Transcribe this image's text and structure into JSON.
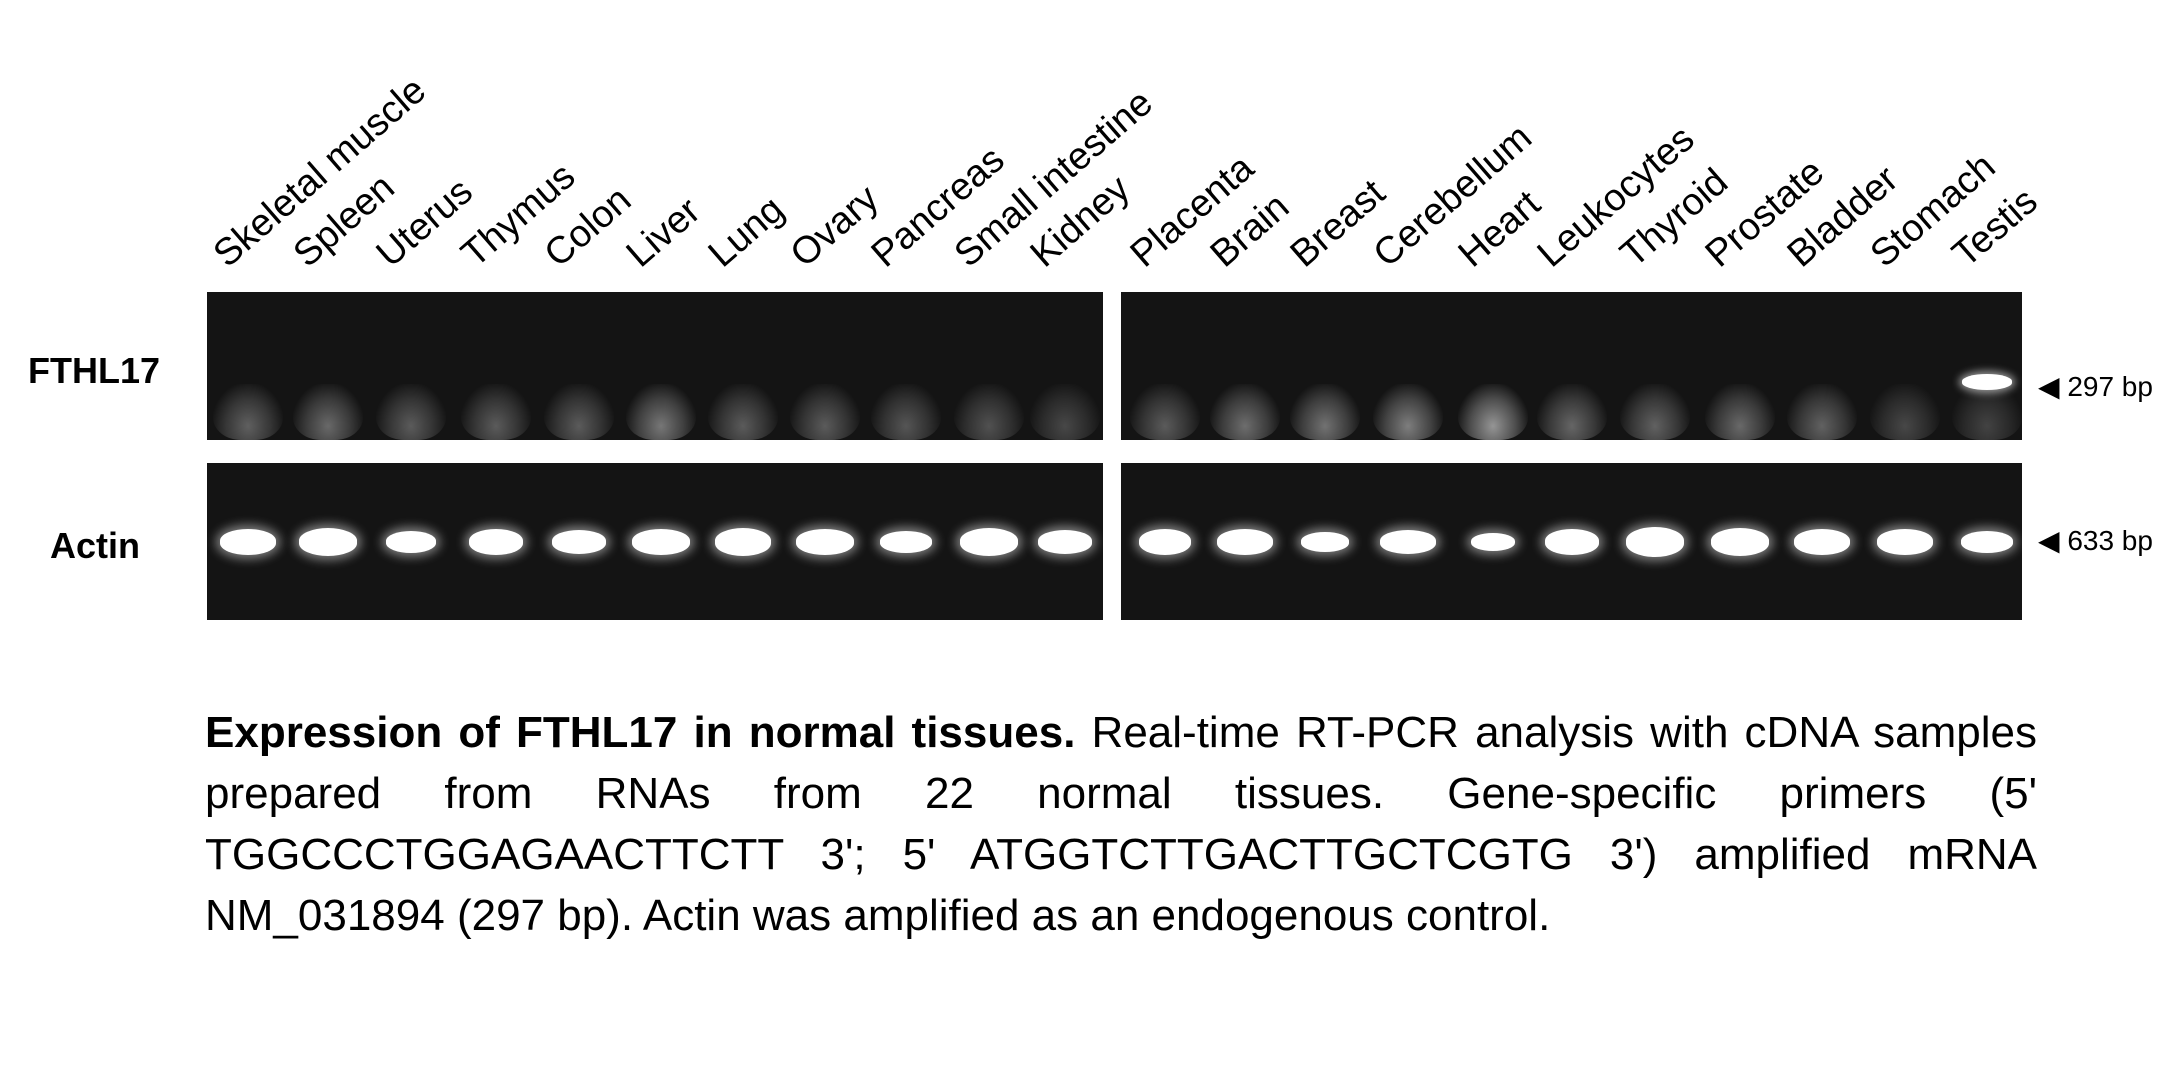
{
  "figure": {
    "tissues": [
      "Skeletal muscle",
      "Spleen",
      "Uterus",
      "Thymus",
      "Colon",
      "Liver",
      "Lung",
      "Ovary",
      "Pancreas",
      "Small intestine",
      "Kidney",
      "Placenta",
      "Brain",
      "Breast",
      "Cerebellum",
      "Heart",
      "Leukocytes",
      "Thyroid",
      "Prostate",
      "Bladder",
      "Stomach",
      "Testis"
    ],
    "rows": [
      {
        "label": "FTHL17",
        "marker": "◀ 297 bp"
      },
      {
        "label": "Actin",
        "marker": "◀ 633 bp"
      }
    ],
    "colors": {
      "gel_background": "#141414",
      "band": "#ffffff"
    }
  },
  "caption": {
    "title": "Expression of FTHL17 in normal tissues.",
    "body": " Real-time RT-PCR analysis with cDNA samples prepared from RNAs from 22 normal tissues. Gene-specific primers (5' TGGCCCTGGAGAACTTCTT 3'; 5' ATGGTCTTGACTTGCTCGTG 3') amplified mRNA NM_031894 (297 bp). Actin was amplified as an endogenous control."
  }
}
